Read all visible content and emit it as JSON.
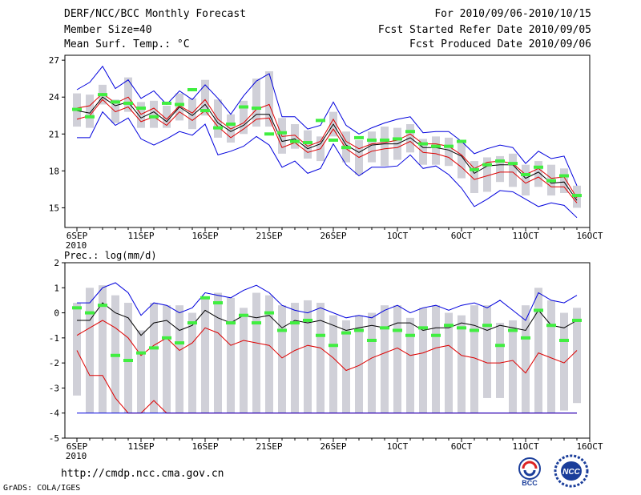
{
  "header": {
    "title": "DERF/NCC/BCC Monthly Forecast",
    "member_size": "Member Size=40",
    "variable": "Mean Surf. Temp.: °C",
    "for_period": "For 2010/09/06-2010/10/15",
    "fcst_started": "Fcst Started Refer Date 2010/09/05",
    "fcst_produced": "Fcst Produced Date 2010/09/06"
  },
  "footer": {
    "url": "http://cmdp.ncc.cma.gov.cn",
    "credit": "GrADS: COLA/IGES",
    "logo1_text": "BCC",
    "logo2_text": "NCC"
  },
  "colors": {
    "box": "#d0d0d8",
    "green": "#40ee40",
    "black": "#000000",
    "red": "#dd0000",
    "blue": "#0000dd"
  },
  "chart_data": [
    {
      "type": "line",
      "title": "Mean Surf. Temp.: °C",
      "x_start_label": "2010",
      "x_tick_labels": [
        "6SEP",
        "11SEP",
        "16SEP",
        "21SEP",
        "26SEP",
        "1OCT",
        "6OCT",
        "11OCT",
        "16OCT"
      ],
      "x_tick_days": [
        0,
        5,
        10,
        15,
        20,
        25,
        30,
        35,
        40
      ],
      "y_ticks": [
        15,
        18,
        21,
        24,
        27
      ],
      "ylim": [
        13.4,
        27.4
      ],
      "days": [
        0,
        1,
        2,
        3,
        4,
        5,
        6,
        7,
        8,
        9,
        10,
        11,
        12,
        13,
        14,
        15,
        16,
        17,
        18,
        19,
        20,
        21,
        22,
        23,
        24,
        25,
        26,
        27,
        28,
        29,
        30,
        31,
        32,
        33,
        34,
        35,
        36,
        37,
        38,
        39
      ],
      "series": [
        {
          "name": "ensemble mean",
          "color": "black",
          "values": [
            22.9,
            22.7,
            24.0,
            23.3,
            23.6,
            22.3,
            22.8,
            22.0,
            23.2,
            22.5,
            23.4,
            21.9,
            21.2,
            21.7,
            22.6,
            22.6,
            20.4,
            20.6,
            19.8,
            20.2,
            21.8,
            20.1,
            19.5,
            20.1,
            20.2,
            20.2,
            20.7,
            19.9,
            19.9,
            19.7,
            19.2,
            17.8,
            18.4,
            18.5,
            18.5,
            17.4,
            17.9,
            17.0,
            17.1,
            15.6
          ]
        },
        {
          "name": "upper red",
          "color": "red",
          "values": [
            23.1,
            23.3,
            24.3,
            23.5,
            24.0,
            22.6,
            23.1,
            22.2,
            23.3,
            22.7,
            23.8,
            22.2,
            21.4,
            21.9,
            23.0,
            23.4,
            20.8,
            20.9,
            20.0,
            20.4,
            22.2,
            20.4,
            19.8,
            20.2,
            20.3,
            20.5,
            21.0,
            20.2,
            20.2,
            20.0,
            19.3,
            18.2,
            18.7,
            18.8,
            18.6,
            17.7,
            18.2,
            17.4,
            17.5,
            15.8
          ]
        },
        {
          "name": "lower red",
          "color": "red",
          "values": [
            22.2,
            22.5,
            23.8,
            22.8,
            23.2,
            22.0,
            22.4,
            21.7,
            22.8,
            22.1,
            22.9,
            21.6,
            20.7,
            21.4,
            22.2,
            22.3,
            19.9,
            20.3,
            19.5,
            19.8,
            21.4,
            19.8,
            19.1,
            19.6,
            19.8,
            19.9,
            20.4,
            19.5,
            19.4,
            19.1,
            18.3,
            17.3,
            17.6,
            17.9,
            17.9,
            17.0,
            17.5,
            16.7,
            16.7,
            15.4
          ]
        },
        {
          "name": "upper blue",
          "color": "blue",
          "values": [
            24.6,
            25.2,
            26.5,
            24.7,
            25.4,
            23.9,
            24.5,
            23.4,
            24.5,
            23.8,
            25.0,
            23.9,
            22.6,
            24.1,
            25.3,
            25.9,
            22.4,
            22.4,
            21.4,
            21.7,
            23.6,
            21.7,
            21.0,
            21.5,
            21.9,
            22.2,
            22.4,
            21.1,
            21.2,
            21.2,
            20.4,
            19.4,
            19.8,
            20.1,
            19.9,
            18.6,
            19.6,
            19.0,
            19.2,
            16.8
          ]
        },
        {
          "name": "lower blue",
          "color": "blue",
          "values": [
            20.7,
            20.7,
            22.8,
            21.7,
            22.3,
            20.6,
            20.1,
            20.6,
            21.2,
            20.9,
            21.8,
            19.3,
            19.6,
            20.0,
            20.8,
            20.1,
            18.3,
            18.8,
            17.8,
            18.2,
            20.2,
            18.5,
            17.6,
            18.3,
            18.3,
            18.4,
            19.3,
            18.2,
            18.4,
            17.7,
            16.6,
            15.1,
            15.7,
            16.4,
            16.3,
            15.7,
            15.1,
            15.4,
            15.2,
            14.2
          ]
        }
      ],
      "boxes": [
        [
          21.6,
          24.3
        ],
        [
          21.5,
          24.2
        ],
        [
          23.4,
          25.0
        ],
        [
          21.9,
          23.8
        ],
        [
          22.8,
          25.6
        ],
        [
          21.5,
          23.6
        ],
        [
          21.5,
          23.7
        ],
        [
          21.5,
          23.3
        ],
        [
          22.1,
          24.3
        ],
        [
          21.4,
          23.9
        ],
        [
          22.5,
          25.4
        ],
        [
          20.7,
          23.8
        ],
        [
          20.3,
          22.6
        ],
        [
          21.0,
          23.7
        ],
        [
          21.6,
          25.5
        ],
        [
          21.6,
          26.1
        ],
        [
          19.4,
          22.3
        ],
        [
          19.8,
          21.8
        ],
        [
          19.0,
          21.3
        ],
        [
          18.8,
          20.8
        ],
        [
          20.8,
          22.8
        ],
        [
          18.7,
          21.2
        ],
        [
          17.7,
          20.5
        ],
        [
          18.7,
          21.2
        ],
        [
          18.4,
          21.6
        ],
        [
          18.9,
          21.5
        ],
        [
          19.5,
          21.8
        ],
        [
          18.5,
          20.6
        ],
        [
          18.5,
          20.8
        ],
        [
          18.4,
          20.7
        ],
        [
          17.4,
          20.4
        ],
        [
          16.2,
          18.8
        ],
        [
          16.3,
          19.1
        ],
        [
          17.1,
          19.2
        ],
        [
          16.7,
          19.4
        ],
        [
          16.0,
          18.5
        ],
        [
          16.7,
          18.8
        ],
        [
          16.0,
          18.5
        ],
        [
          16.2,
          18.2
        ],
        [
          15.0,
          16.8
        ]
      ],
      "markers": [
        23.0,
        22.4,
        24.2,
        23.6,
        23.5,
        23.1,
        22.4,
        23.5,
        23.4,
        24.6,
        22.9,
        21.5,
        21.8,
        23.2,
        23.1,
        21.0,
        21.1,
        20.4,
        20.3,
        22.1,
        20.5,
        19.9,
        20.7,
        20.5,
        20.5,
        20.6,
        21.2,
        20.2,
        20.0,
        20.0,
        20.4,
        18.1,
        18.5,
        18.8,
        18.6,
        17.7,
        18.3,
        17.2,
        17.6,
        16.0
      ]
    },
    {
      "type": "line",
      "title": "Prec.: log(mm/d)",
      "x_start_label": "2010",
      "x_tick_labels": [
        "6SEP",
        "11SEP",
        "16SEP",
        "21SEP",
        "26SEP",
        "1OCT",
        "6OCT",
        "11OCT",
        "16OCT"
      ],
      "x_tick_days": [
        0,
        5,
        10,
        15,
        20,
        25,
        30,
        35,
        40
      ],
      "y_ticks": [
        -5,
        -4,
        -3,
        -2,
        -1,
        0,
        1,
        2
      ],
      "ylim": [
        -5,
        2
      ],
      "days": [
        0,
        1,
        2,
        3,
        4,
        5,
        6,
        7,
        8,
        9,
        10,
        11,
        12,
        13,
        14,
        15,
        16,
        17,
        18,
        19,
        20,
        21,
        22,
        23,
        24,
        25,
        26,
        27,
        28,
        29,
        30,
        31,
        32,
        33,
        34,
        35,
        36,
        37,
        38,
        39
      ],
      "series": [
        {
          "name": "ensemble mean",
          "color": "black",
          "values": [
            -0.3,
            -0.3,
            0.4,
            0.0,
            -0.2,
            -0.9,
            -0.4,
            -0.3,
            -0.7,
            -0.5,
            0.1,
            -0.2,
            -0.4,
            -0.1,
            -0.2,
            -0.1,
            -0.6,
            -0.3,
            -0.4,
            -0.3,
            -0.5,
            -0.7,
            -0.6,
            -0.5,
            -0.6,
            -0.4,
            -0.4,
            -0.7,
            -0.6,
            -0.6,
            -0.4,
            -0.5,
            -0.7,
            -0.5,
            -0.6,
            -0.7,
            0.1,
            -0.5,
            -0.6,
            -0.3
          ]
        },
        {
          "name": "upper red",
          "color": "red",
          "values": [
            -0.9,
            -0.6,
            -0.3,
            -0.6,
            -1.0,
            -1.7,
            -1.3,
            -1.0,
            -1.5,
            -1.2,
            -0.6,
            -0.8,
            -1.3,
            -1.1,
            -1.2,
            -1.3,
            -1.8,
            -1.5,
            -1.3,
            -1.4,
            -1.8,
            -2.3,
            -2.1,
            -1.8,
            -1.6,
            -1.4,
            -1.7,
            -1.6,
            -1.4,
            -1.3,
            -1.7,
            -1.8,
            -2.0,
            -2.0,
            -1.9,
            -2.4,
            -1.6,
            -1.8,
            -2.0,
            -1.5
          ]
        },
        {
          "name": "lower red",
          "color": "red",
          "values": [
            -1.5,
            -2.5,
            -2.5,
            -3.4,
            -4.0,
            -4.0,
            -3.5,
            -4.0,
            -4.0,
            -4.0,
            -4.0,
            -4.0,
            -4.0,
            -4.0,
            -4.0,
            -4.0,
            -4.0,
            -4.0,
            -4.0,
            -4.0,
            -4.0,
            -4.0,
            -4.0,
            -4.0,
            -4.0,
            -4.0,
            -4.0,
            -4.0,
            -4.0,
            -4.0,
            -4.0,
            -4.0,
            -4.0,
            -4.0,
            -4.0,
            -4.0,
            -4.0,
            -4.0,
            -4.0,
            -4.0
          ]
        },
        {
          "name": "upper blue",
          "color": "blue",
          "values": [
            0.4,
            0.4,
            1.0,
            1.2,
            0.8,
            -0.1,
            0.4,
            0.3,
            0.0,
            0.2,
            0.8,
            0.7,
            0.6,
            0.9,
            1.1,
            0.8,
            0.3,
            0.1,
            0.0,
            0.2,
            0.0,
            -0.2,
            -0.1,
            -0.2,
            0.1,
            0.3,
            0.0,
            0.2,
            0.3,
            0.1,
            0.3,
            0.4,
            0.2,
            0.5,
            0.1,
            -0.3,
            0.8,
            0.5,
            0.4,
            0.7
          ]
        },
        {
          "name": "lower blue",
          "color": "blue",
          "values": [
            -4.0,
            -4.0,
            -4.0,
            -4.0,
            -4.0,
            -4.0,
            -4.0,
            -4.0,
            -4.0,
            -4.0,
            -4.0,
            -4.0,
            -4.0,
            -4.0,
            -4.0,
            -4.0,
            -4.0,
            -4.0,
            -4.0,
            -4.0,
            -4.0,
            -4.0,
            -4.0,
            -4.0,
            -4.0,
            -4.0,
            -4.0,
            -4.0,
            -4.0,
            -4.0,
            -4.0,
            -4.0,
            -4.0,
            -4.0,
            -4.0,
            -4.0,
            -4.0,
            -4.0,
            -4.0,
            -4.0
          ]
        }
      ],
      "boxes": [
        [
          -3.3,
          0.4
        ],
        [
          -4.0,
          1.0
        ],
        [
          -4.0,
          1.1
        ],
        [
          -4.0,
          0.7
        ],
        [
          -4.0,
          0.4
        ],
        [
          -4.0,
          -0.7
        ],
        [
          -4.0,
          0.4
        ],
        [
          -4.0,
          0.3
        ],
        [
          -4.0,
          0.3
        ],
        [
          -4.0,
          0.0
        ],
        [
          -4.0,
          0.6
        ],
        [
          -4.0,
          0.8
        ],
        [
          -4.0,
          0.6
        ],
        [
          -4.0,
          0.2
        ],
        [
          -4.0,
          0.8
        ],
        [
          -4.0,
          0.7
        ],
        [
          -4.0,
          0.3
        ],
        [
          -4.0,
          0.4
        ],
        [
          -4.0,
          0.5
        ],
        [
          -4.0,
          0.4
        ],
        [
          -4.0,
          -0.1
        ],
        [
          -4.0,
          -0.3
        ],
        [
          -4.0,
          -0.1
        ],
        [
          -4.0,
          0.0
        ],
        [
          -4.0,
          0.3
        ],
        [
          -4.0,
          0.3
        ],
        [
          -4.0,
          -0.2
        ],
        [
          -4.0,
          0.2
        ],
        [
          -4.0,
          0.3
        ],
        [
          -4.0,
          0.0
        ],
        [
          -4.0,
          -0.1
        ],
        [
          -4.0,
          0.3
        ],
        [
          -3.4,
          0.3
        ],
        [
          -3.4,
          -0.4
        ],
        [
          -4.0,
          -0.3
        ],
        [
          -4.0,
          0.3
        ],
        [
          -4.0,
          1.0
        ],
        [
          -4.0,
          0.5
        ],
        [
          -3.9,
          0.0
        ],
        [
          -3.6,
          0.2
        ]
      ],
      "markers": [
        0.2,
        0.0,
        0.3,
        -1.7,
        -1.9,
        -1.6,
        -1.4,
        -1.0,
        -1.2,
        -0.4,
        0.6,
        0.4,
        -0.4,
        -0.1,
        -0.4,
        0.0,
        -0.7,
        -0.4,
        -0.3,
        -0.9,
        -1.3,
        -0.8,
        -0.7,
        -1.1,
        -0.6,
        -0.7,
        -0.9,
        -0.6,
        -0.9,
        -0.5,
        -0.6,
        -0.7,
        -0.5,
        -1.3,
        -0.7,
        -1.0,
        0.1,
        -0.5,
        -1.1,
        -0.3
      ]
    }
  ]
}
